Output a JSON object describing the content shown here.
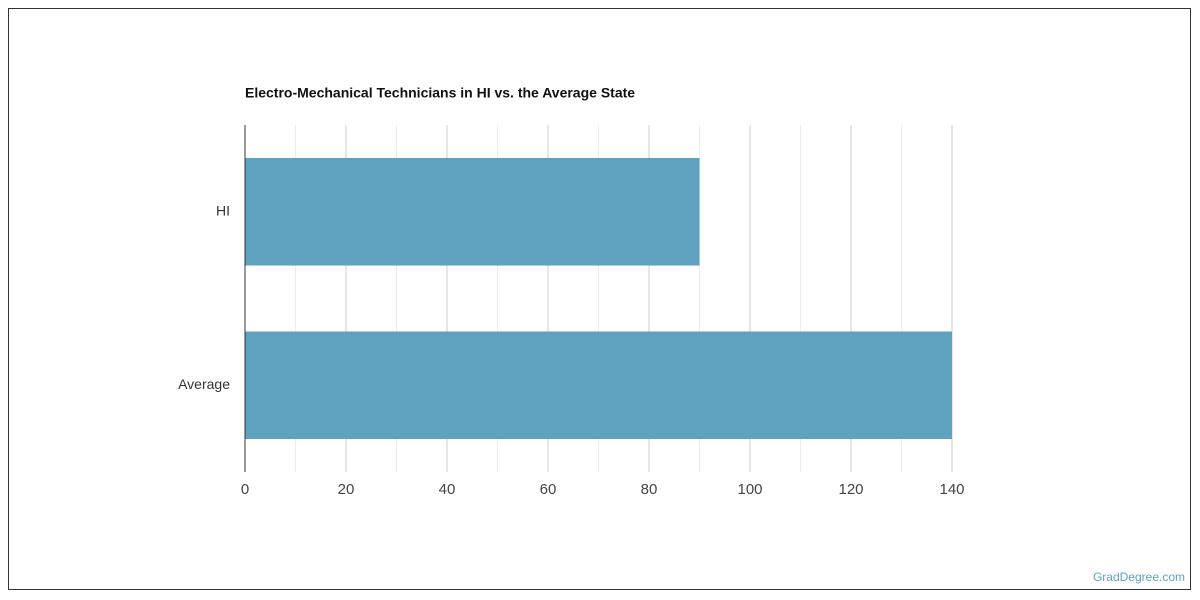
{
  "chart_data": {
    "type": "barh",
    "title": "Electro-Mechanical Technicians in HI vs. the Average State",
    "categories": [
      "HI",
      "Average"
    ],
    "values": [
      90,
      140
    ],
    "color": "#5fa2bf",
    "xlim": [
      0,
      140
    ],
    "xticks": [
      0,
      20,
      40,
      60,
      80,
      100,
      120,
      140
    ],
    "grid": true,
    "watermark": "GradDegree.com"
  }
}
